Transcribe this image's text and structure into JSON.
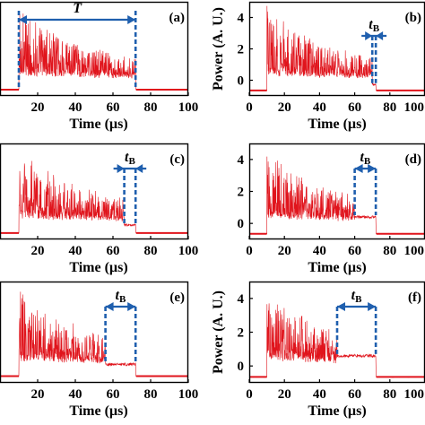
{
  "colors": {
    "signal": "#e0141c",
    "marker": "#1f5fae",
    "axis": "#000000"
  },
  "chart_data": [
    {
      "type": "line",
      "panel_label": "(a)",
      "xlabel": "Time (µs)",
      "ylabel": "",
      "xlim": [
        0,
        100
      ],
      "ylim": [
        -1,
        5
      ],
      "xticks": [
        20,
        40,
        60,
        80,
        100
      ],
      "yticks": [],
      "signal": {
        "start": 10,
        "end": 72,
        "baseline": -0.6,
        "tail_level": -0.3
      },
      "markers": {
        "type": "span",
        "start": 10,
        "end": 72,
        "label": "T"
      }
    },
    {
      "type": "line",
      "panel_label": "(b)",
      "xlabel": "Time (µs)",
      "ylabel": "Power (A. U.)",
      "xlim": [
        0,
        100
      ],
      "ylim": [
        -1,
        5
      ],
      "xticks": [
        0,
        20,
        40,
        60,
        80,
        100
      ],
      "yticks": [
        0,
        2,
        4
      ],
      "signal": {
        "start": 10,
        "end": 72,
        "baseline": -0.65,
        "tail_level": -0.3
      },
      "markers": {
        "type": "tb",
        "start": 70,
        "end": 72,
        "label": "tB"
      }
    },
    {
      "type": "line",
      "panel_label": "(c)",
      "xlabel": "Time (µs)",
      "ylabel": "",
      "xlim": [
        0,
        100
      ],
      "ylim": [
        -1,
        5
      ],
      "xticks": [
        20,
        40,
        60,
        80,
        100
      ],
      "yticks": [],
      "signal": {
        "start": 10,
        "end": 72,
        "baseline": -0.6,
        "tail_level": -0.1
      },
      "markers": {
        "type": "tb",
        "start": 66,
        "end": 72,
        "label": "tB"
      }
    },
    {
      "type": "line",
      "panel_label": "(d)",
      "xlabel": "Time (µs)",
      "ylabel": "",
      "xlim": [
        0,
        100
      ],
      "ylim": [
        -1,
        5
      ],
      "xticks": [
        0,
        20,
        40,
        60,
        80,
        100
      ],
      "yticks": [
        0,
        2,
        4
      ],
      "signal": {
        "start": 10,
        "end": 72,
        "baseline": -0.65,
        "tail_level": 0.4
      },
      "markers": {
        "type": "tb",
        "start": 60,
        "end": 72,
        "label": "tB"
      }
    },
    {
      "type": "line",
      "panel_label": "(e)",
      "xlabel": "Time (µs)",
      "ylabel": "",
      "xlim": [
        0,
        100
      ],
      "ylim": [
        -1,
        5
      ],
      "xticks": [
        20,
        40,
        60,
        80,
        100
      ],
      "yticks": [],
      "signal": {
        "start": 10,
        "end": 72,
        "baseline": -0.6,
        "tail_level": 0.1
      },
      "markers": {
        "type": "tb",
        "start": 56,
        "end": 72,
        "label": "tB"
      }
    },
    {
      "type": "line",
      "panel_label": "(f)",
      "xlabel": "Time (µs)",
      "ylabel": "Power (A. U.)",
      "xlim": [
        0,
        100
      ],
      "ylim": [
        -1,
        5
      ],
      "xticks": [
        0,
        20,
        40,
        60,
        80,
        100
      ],
      "yticks": [
        0,
        2,
        4
      ],
      "signal": {
        "start": 10,
        "end": 72,
        "baseline": -0.65,
        "tail_level": 0.6
      },
      "markers": {
        "type": "tb",
        "start": 50,
        "end": 72,
        "label": "tB"
      }
    }
  ]
}
